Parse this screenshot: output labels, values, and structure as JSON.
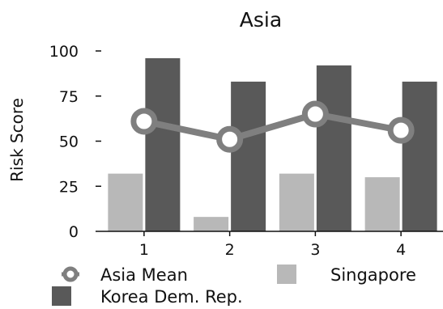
{
  "chart_data": {
    "type": "bar",
    "title": "Asia",
    "ylabel": "Risk Score",
    "xlabel": "",
    "categories": [
      "1",
      "2",
      "3",
      "4"
    ],
    "ylim": [
      0,
      100
    ],
    "yticks": [
      0,
      25,
      50,
      75,
      100
    ],
    "grid": false,
    "legend_position": "bottom",
    "series": [
      {
        "name": "Singapore",
        "type": "bar",
        "color": "#b8b8b8",
        "values": [
          32,
          8,
          32,
          30
        ]
      },
      {
        "name": "Korea Dem. Rep.",
        "type": "bar",
        "color": "#595959",
        "values": [
          96,
          83,
          92,
          83
        ]
      },
      {
        "name": "Asia Mean",
        "type": "line",
        "color": "#7f7f7f",
        "values": [
          61,
          51,
          65,
          56
        ]
      }
    ]
  }
}
